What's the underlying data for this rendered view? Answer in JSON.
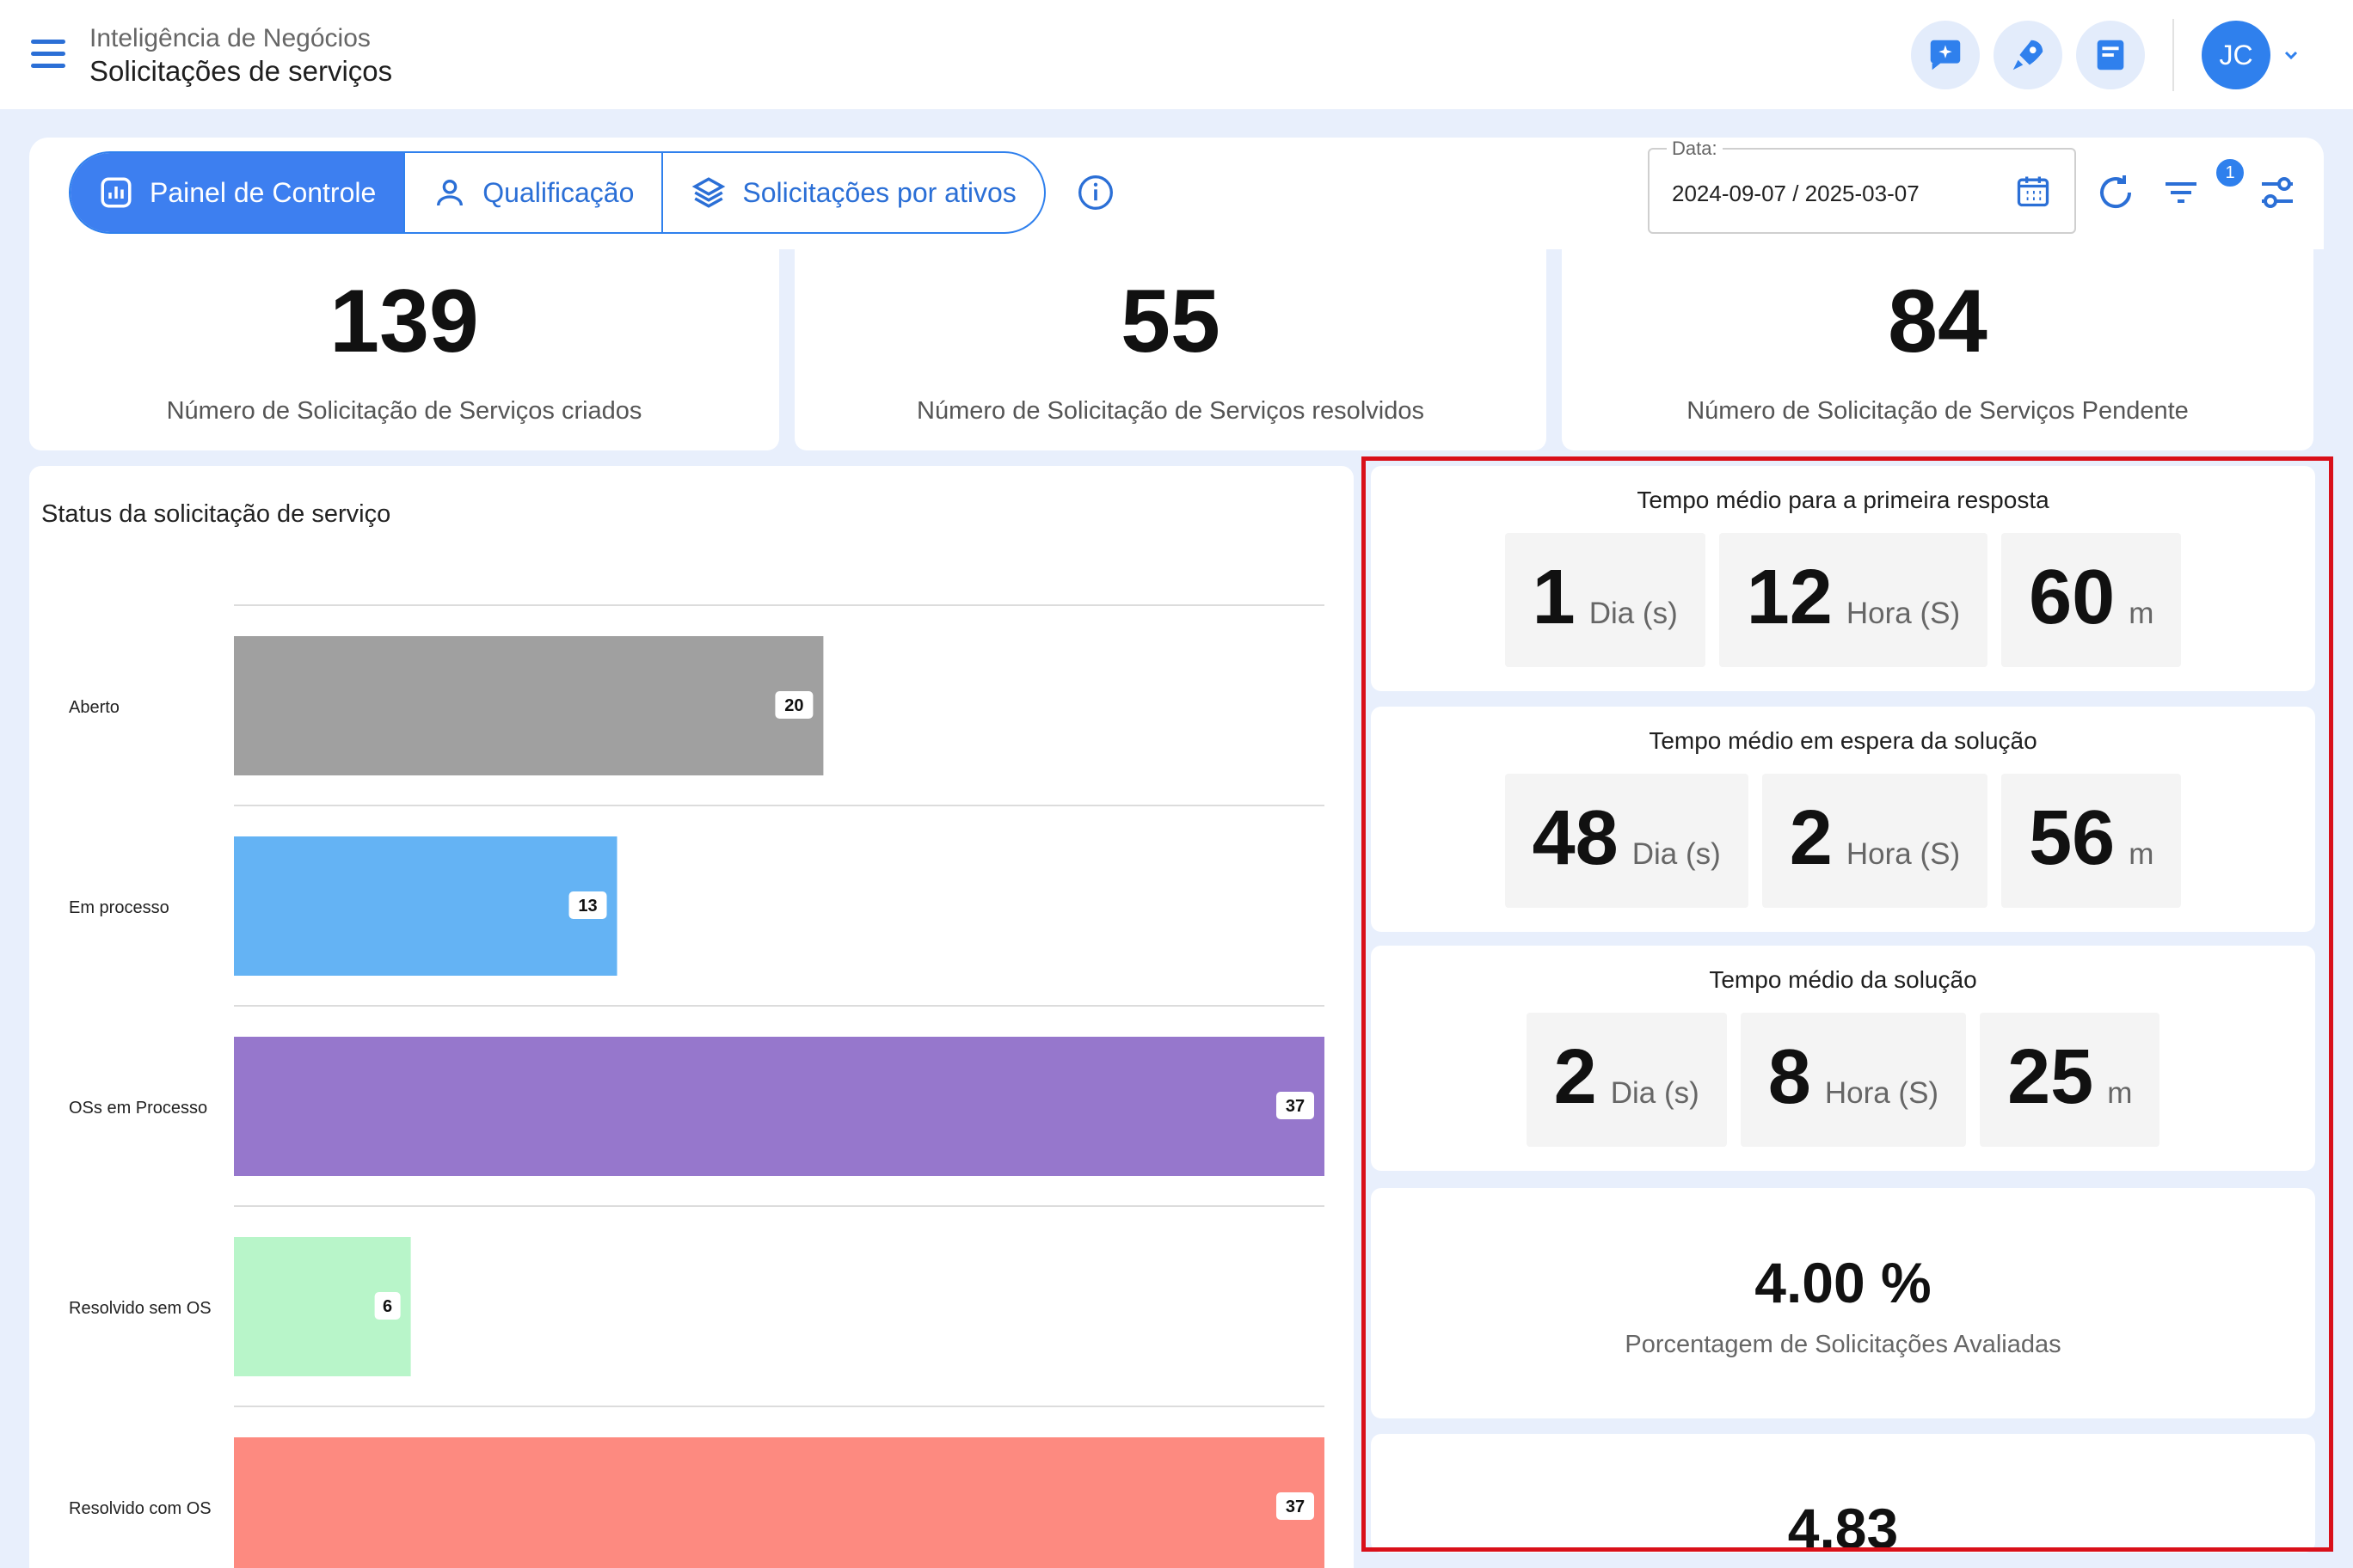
{
  "header": {
    "subtitle": "Inteligência de Negócios",
    "title": "Solicitações de serviços",
    "user_initials": "JC"
  },
  "toolbar": {
    "tabs": [
      {
        "label": "Painel de Controle",
        "icon": "chart-icon",
        "active": true
      },
      {
        "label": "Qualificação",
        "icon": "user-icon",
        "active": false
      },
      {
        "label": "Solicitações por ativos",
        "icon": "layers-icon",
        "active": false
      }
    ],
    "date_label": "Data:",
    "date_value": "2024-09-07 / 2025-03-07",
    "filter_count": "1"
  },
  "kpis": [
    {
      "value": "139",
      "label": "Número de Solicitação de Serviços criados"
    },
    {
      "value": "55",
      "label": "Número de Solicitação de Serviços resolvidos"
    },
    {
      "value": "84",
      "label": "Número de Solicitação de Serviços Pendente"
    }
  ],
  "chart_data": {
    "type": "bar",
    "orientation": "horizontal",
    "title": "Status da solicitação de serviço",
    "categories": [
      "Aberto",
      "Em processo",
      "OSs em Processo",
      "Resolvido sem OS",
      "Resolvido com OS"
    ],
    "values": [
      20,
      13,
      37,
      6,
      37
    ],
    "colors": [
      "#a0a0a0",
      "#64b3f4",
      "#9677cc",
      "#b8f5c9",
      "#fd8a80"
    ],
    "xlim": [
      0,
      37
    ]
  },
  "metrics": {
    "first_response": {
      "title": "Tempo médio para a primeira resposta",
      "days": "1",
      "hours": "12",
      "minutes": "60"
    },
    "waiting_solution": {
      "title": "Tempo médio em espera da solução",
      "days": "48",
      "hours": "2",
      "minutes": "56"
    },
    "solution": {
      "title": "Tempo médio da solução",
      "days": "2",
      "hours": "8",
      "minutes": "25"
    },
    "units": {
      "days": "Dia (s)",
      "hours": "Hora (S)",
      "minutes": "m"
    },
    "evaluated_pct": {
      "value": "4.00 %",
      "label": "Porcentagem de Solicitações Avaliadas"
    },
    "rating": {
      "value": "4.83"
    }
  }
}
